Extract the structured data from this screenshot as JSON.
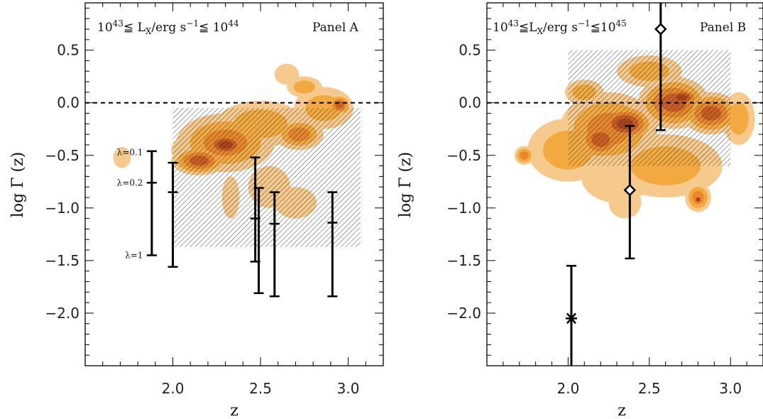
{
  "chart_data": [
    {
      "type": "scatter",
      "panel_label": "Panel A",
      "range_text": {
        "base1": "10",
        "exp1": "43",
        "mid": "≦ L",
        "sub": "X",
        "unit": "/erg s",
        "exp2": "−1",
        "rel2": "≦ 10",
        "exp3": "44"
      },
      "xlabel": "z",
      "ylabel": "log  Γ (z)",
      "xlim": [
        1.5,
        3.2
      ],
      "ylim": [
        -2.5,
        0.95
      ],
      "xticks": [
        2.0,
        2.5,
        3.0
      ],
      "xtick_labels": [
        "2.0",
        "2.5",
        "3.0"
      ],
      "yticks": [
        0.5,
        0.0,
        -0.5,
        -1.0,
        -1.5,
        -2.0
      ],
      "ytick_labels": [
        "0.5",
        "0.0",
        "−0.5",
        "−1.0",
        "−1.5",
        "−2.0"
      ],
      "reference_line_y": 0.0,
      "hatched_region": {
        "x": [
          2.0,
          3.07
        ],
        "y": [
          -1.37,
          -0.05
        ]
      },
      "lambda_labels": [
        {
          "text": "λ=0.1",
          "y": -0.47
        },
        {
          "text": "λ=0.2",
          "y": -0.76
        },
        {
          "text": "λ=1",
          "y": -1.45
        }
      ],
      "error_bars": [
        {
          "x": 1.88,
          "y": -0.76,
          "ylow": -1.45,
          "yhigh": -0.46
        },
        {
          "x": 2.0,
          "y": -0.85,
          "ylow": -1.56,
          "yhigh": -0.57
        },
        {
          "x": 2.47,
          "y": -1.1,
          "ylow": -1.51,
          "yhigh": -0.52
        },
        {
          "x": 2.49,
          "y": -0.81,
          "ylow": -1.81,
          "yhigh": -0.81
        },
        {
          "x": 2.58,
          "y": -1.15,
          "ylow": -1.84,
          "yhigh": -0.85
        },
        {
          "x": 2.91,
          "y": -1.14,
          "ylow": -1.84,
          "yhigh": -0.85
        }
      ],
      "density_levels": 5
    },
    {
      "type": "scatter",
      "panel_label": "Panel B",
      "range_text": {
        "base1": "10",
        "exp1": "43",
        "mid": "≦L",
        "sub": "X",
        "unit": "/erg s",
        "exp2": "−1",
        "rel2": "≦10",
        "exp3": "45"
      },
      "xlabel": "z",
      "ylabel": "log  Γ (z)",
      "xlim": [
        1.5,
        3.2
      ],
      "ylim": [
        -2.5,
        0.95
      ],
      "xticks": [
        2.0,
        2.5,
        3.0
      ],
      "xtick_labels": [
        "2.0",
        "2.5",
        "3.0"
      ],
      "yticks": [
        0.5,
        0.0,
        -0.5,
        -1.0,
        -1.5,
        -2.0
      ],
      "ytick_labels": [
        "0.5",
        "0.0",
        "−0.5",
        "−1.0",
        "−1.5",
        "−2.0"
      ],
      "reference_line_y": 0.0,
      "hatched_region": {
        "x": [
          2.0,
          3.0
        ],
        "y": [
          -0.6,
          0.5
        ]
      },
      "error_bars": [
        {
          "x": 2.38,
          "y": -0.83,
          "ylow": -1.48,
          "yhigh": -0.22,
          "marker": "diamond"
        },
        {
          "x": 2.57,
          "y": 0.7,
          "ylow": -0.26,
          "yhigh": 0.95,
          "marker": "diamond"
        },
        {
          "x": 2.02,
          "y": -2.05,
          "ylow": -2.5,
          "yhigh": -1.55,
          "marker": "asterisk"
        }
      ],
      "density_levels": 5
    }
  ],
  "colors": {
    "level1": "#f6c98c",
    "level2": "#f2a93f",
    "level3": "#e8862c",
    "level4": "#cc5d20",
    "level5": "#a8431a",
    "axis": "#000000",
    "hatch": "#333333"
  }
}
